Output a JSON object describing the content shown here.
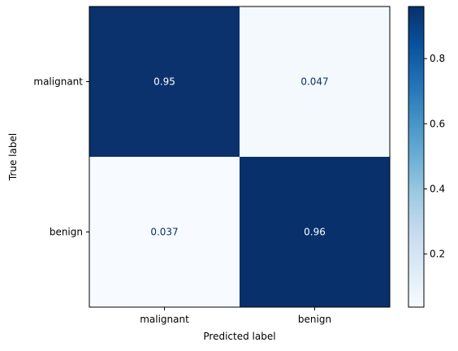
{
  "chart_data": {
    "type": "heatmap",
    "title": "",
    "xlabel": "Predicted label",
    "ylabel": "True label",
    "x_categories": [
      "malignant",
      "benign"
    ],
    "y_categories": [
      "malignant",
      "benign"
    ],
    "values": [
      [
        0.95,
        0.047
      ],
      [
        0.037,
        0.96
      ]
    ],
    "cell_labels": [
      [
        "0.95",
        "0.047"
      ],
      [
        "0.037",
        "0.96"
      ]
    ],
    "colormap": "Blues",
    "color_low": "#f7fbff",
    "color_high": "#08306b",
    "colorbar": {
      "range": [
        0.037,
        0.96
      ],
      "ticks": [
        0.2,
        0.4,
        0.6,
        0.8
      ],
      "tick_labels": [
        "0.2",
        "0.4",
        "0.6",
        "0.8"
      ]
    }
  }
}
